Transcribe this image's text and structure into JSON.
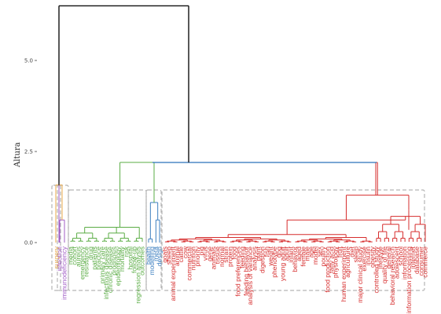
{
  "chart_data": {
    "type": "dendrogram",
    "ylabel": "Altura",
    "yticks": [
      {
        "value": 0.0,
        "label": "0.0"
      },
      {
        "value": 2.5,
        "label": "2.5"
      },
      {
        "value": 5.0,
        "label": "5.0"
      }
    ],
    "ylim": [
      0,
      6.6
    ],
    "colors": {
      "orange": "#e9a84a",
      "purple": "#a15cc6",
      "green": "#5aac44",
      "blue": "#3d7fc0",
      "red": "#d62c2c",
      "root": "#111111",
      "box": "#b5b5b5"
    },
    "clusters": [
      {
        "color": "orange",
        "leaves": [
          "surgery"
        ]
      },
      {
        "color": "purple",
        "leaves": [
          "infection",
          "immunodeficiency"
        ]
      },
      {
        "color": "green",
        "leaves": [
          "media",
          "cohort",
          "aureus",
          "emergency",
          "resistance",
          "drug",
          "patients",
          "practice",
          "primary care",
          "infectious disease",
          "chronic disease",
          "prognosis",
          "epidemiology",
          "mortality",
          "risk",
          "hospital",
          "follow-up",
          "regression analysis",
          "outcomes"
        ]
      },
      {
        "color": "blue",
        "leaves": [
          "health",
          "modelling",
          "meta",
          "design"
        ]
      },
      {
        "color": "red",
        "leaves": [
          "goats",
          "sheep",
          "animal experiment",
          "animal",
          "cattle",
          "cow",
          "commercial",
          "nutrition",
          "priority",
          "pig",
          "virus",
          "gene",
          "animals",
          "tissue",
          "normal",
          "strain",
          "protein",
          "food",
          "food preferences",
          "feeding",
          "feeding behavior",
          "analysis of variance",
          "analysis",
          "plant",
          "digestion",
          "fish",
          "weight",
          "phenotype",
          "dog",
          "young adult",
          "adult",
          "infant",
          "behavior",
          "aged",
          "female",
          "male",
          "age",
          "model",
          "sex",
          "poultry",
          "food production",
          "fatty acid",
          "physiology",
          "fruit",
          "human experiment",
          "agriculture",
          "diet",
          "sleep",
          "major clinical study",
          "exercise",
          "insulin",
          "obesity",
          "controlled study",
          "lifestyle",
          "quality of life",
          "general",
          "behavioral research",
          "adolescent",
          "school",
          "information",
          "information processing",
          "internet",
          "database",
          "consumer",
          "commerce"
        ]
      }
    ]
  }
}
